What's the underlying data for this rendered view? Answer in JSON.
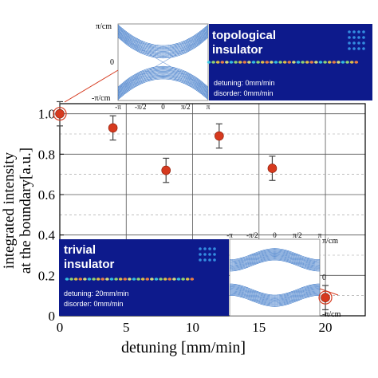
{
  "chart_data": {
    "type": "scatter",
    "xlabel": "detuning [mm/min]",
    "ylabel_line1": "integrated  intensity",
    "ylabel_line2": "at the boundary[a.u.]",
    "xlim": [
      0,
      23
    ],
    "ylim": [
      0,
      1.05
    ],
    "x_ticks": [
      "0",
      "5",
      "10",
      "15",
      "20"
    ],
    "y_ticks": [
      "0",
      "0.2",
      "0.4",
      "0.6",
      "0.8",
      "1.0"
    ],
    "x_tick_values": [
      0,
      5,
      10,
      15,
      20
    ],
    "y_tick_values": [
      0,
      0.2,
      0.4,
      0.6,
      0.8,
      1.0
    ],
    "grid": true,
    "marker_color": "#d63a1f",
    "points": [
      {
        "x": 0,
        "y": 1.0,
        "err": 0.06
      },
      {
        "x": 4,
        "y": 0.93,
        "err": 0.06
      },
      {
        "x": 8,
        "y": 0.72,
        "err": 0.06
      },
      {
        "x": 12,
        "y": 0.89,
        "err": 0.06
      },
      {
        "x": 16,
        "y": 0.73,
        "err": 0.06
      },
      {
        "x": 20,
        "y": 0.09,
        "err": 0.06
      }
    ]
  },
  "insets": {
    "band_axis_labels": {
      "pi_cm": "π/cm",
      "zero": "0",
      "neg_pi_cm": "-π/cm",
      "k_ticks": [
        "-π",
        "-π/2",
        "0",
        "π/2",
        "π"
      ]
    },
    "topological": {
      "title_line1": "topological",
      "title_line2": "insulator",
      "detuning": "detuning: 0mm/min",
      "disorder": "disorder: 0mm/min"
    },
    "trivial": {
      "title_line1": "trivial",
      "title_line2": "insulator",
      "detuning": "detuning: 20mm/min",
      "disorder": "disorder:    0mm/min"
    },
    "colors": {
      "panel_blue": "#0d1a8c",
      "band_blue": "#2f6fc4"
    }
  }
}
